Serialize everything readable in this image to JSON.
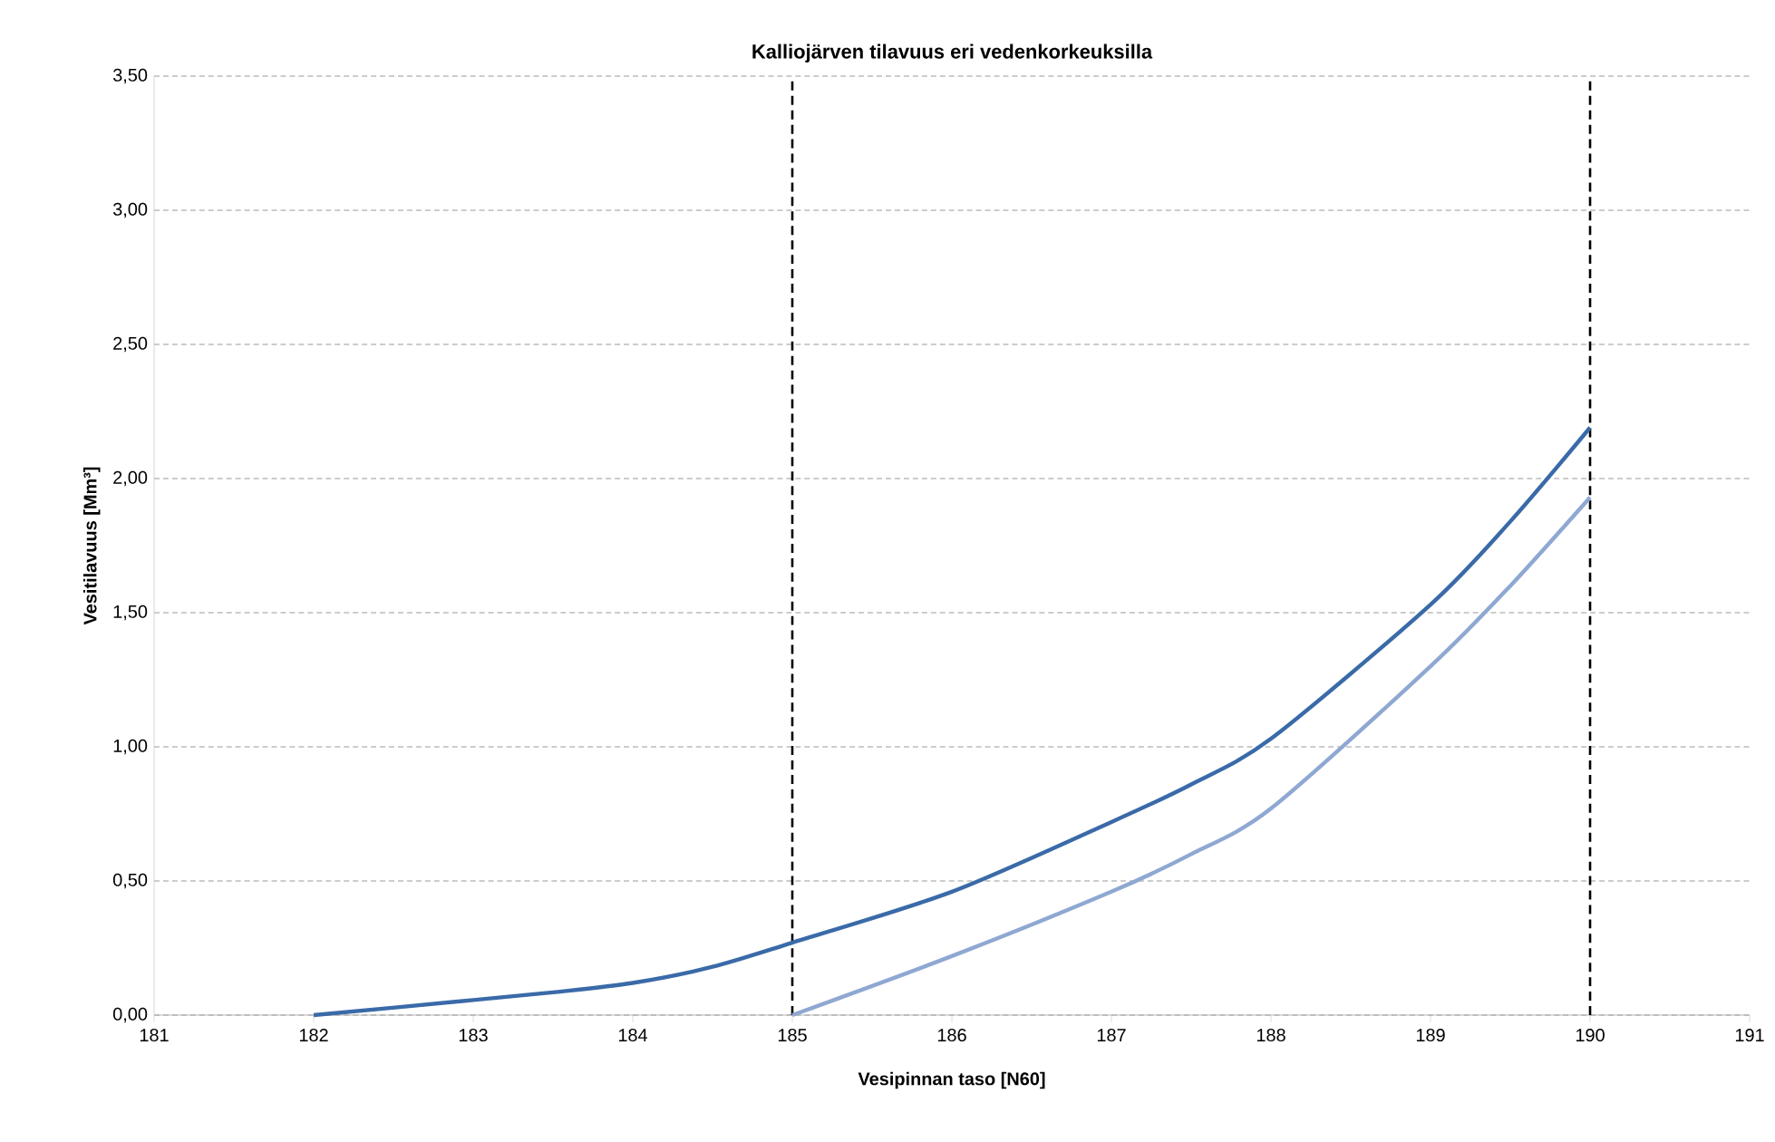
{
  "chart_data": {
    "type": "line",
    "title": "Kalliojärven tilavuus eri vedenkorkeuksilla",
    "xlabel": "Vesipinnan taso [N60]",
    "ylabel": "Vesitilavuus [Mm³]",
    "xlim": [
      181,
      191
    ],
    "xticks": [
      181,
      182,
      183,
      184,
      185,
      186,
      187,
      188,
      189,
      190,
      191
    ],
    "ylim": [
      0,
      3.5
    ],
    "yticks": [
      {
        "value": 0,
        "label": "0,00"
      },
      {
        "value": 0.5,
        "label": "0,50"
      },
      {
        "value": 1,
        "label": "1,00"
      },
      {
        "value": 1.5,
        "label": "1,50"
      },
      {
        "value": 2,
        "label": "2,00"
      },
      {
        "value": 2.5,
        "label": "2,50"
      },
      {
        "value": 3,
        "label": "3,00"
      },
      {
        "value": 3.5,
        "label": "3,50"
      }
    ],
    "grid": "y",
    "marker": "none",
    "line_style": "solid",
    "series": [
      {
        "color": "#3a6aa8",
        "x": [
          182,
          183,
          183.5,
          184,
          184.5,
          185,
          186,
          187,
          187.5,
          188,
          189,
          189.5,
          190
        ],
        "values": [
          0,
          0.056,
          0.085,
          0.12,
          0.18,
          0.27,
          0.46,
          0.72,
          0.86,
          1.03,
          1.53,
          1.84,
          2.19
        ]
      },
      {
        "color": "#8fa8d2",
        "x": [
          185,
          186,
          187,
          187.5,
          188,
          189,
          189.5,
          190
        ],
        "values": [
          0,
          0.22,
          0.46,
          0.6,
          0.77,
          1.3,
          1.6,
          1.93
        ]
      }
    ],
    "ref_lines": [
      {
        "axis": "x",
        "value": 185,
        "color": "#000000",
        "line_style": "dashed"
      },
      {
        "axis": "x",
        "value": 190,
        "color": "#000000",
        "line_style": "dashed"
      }
    ]
  }
}
